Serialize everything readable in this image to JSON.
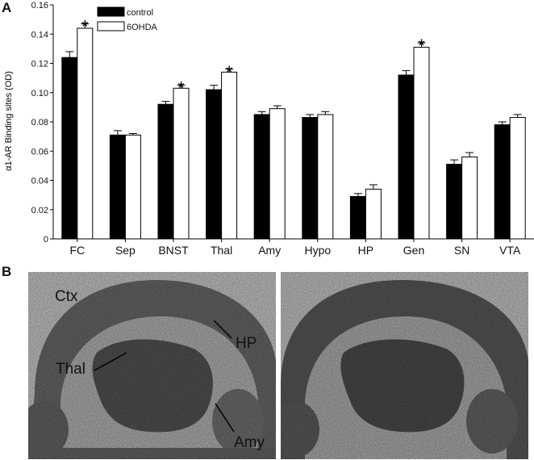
{
  "panel_a_letter": "A",
  "panel_b_letter": "B",
  "chart_data": {
    "type": "bar",
    "ylabel": "α1-AR Binding sites (OD)",
    "xlabel": "",
    "ylim": [
      0,
      0.16
    ],
    "yticks": [
      "0",
      "0.02",
      "0.04",
      "0.06",
      "0.08",
      "0.10",
      "0.12",
      "0.14",
      "0.16"
    ],
    "categories": [
      "FC",
      "Sep",
      "BNST",
      "Thal",
      "Amy",
      "Hypo",
      "HP",
      "Gen",
      "SN",
      "VTA"
    ],
    "series": [
      {
        "name": "control",
        "color": "#000000",
        "values": [
          0.124,
          0.071,
          0.092,
          0.102,
          0.085,
          0.083,
          0.029,
          0.112,
          0.051,
          0.078
        ],
        "errors": [
          0.004,
          0.003,
          0.002,
          0.003,
          0.002,
          0.002,
          0.002,
          0.003,
          0.003,
          0.002
        ]
      },
      {
        "name": "6OHDA",
        "color": "#ffffff",
        "values": [
          0.144,
          0.071,
          0.103,
          0.114,
          0.089,
          0.085,
          0.034,
          0.131,
          0.056,
          0.083
        ],
        "errors": [
          0.003,
          0.001,
          0.002,
          0.002,
          0.002,
          0.002,
          0.003,
          0.003,
          0.003,
          0.002
        ]
      }
    ],
    "significance": [
      "*",
      "",
      "*",
      "*",
      "",
      "",
      "",
      "*",
      "",
      ""
    ],
    "legend_position": "top-left",
    "grid": false
  },
  "brain_sections": {
    "labels": {
      "ctx": "Ctx",
      "hp": "HP",
      "thal": "Thal",
      "amy": "Amy"
    }
  }
}
